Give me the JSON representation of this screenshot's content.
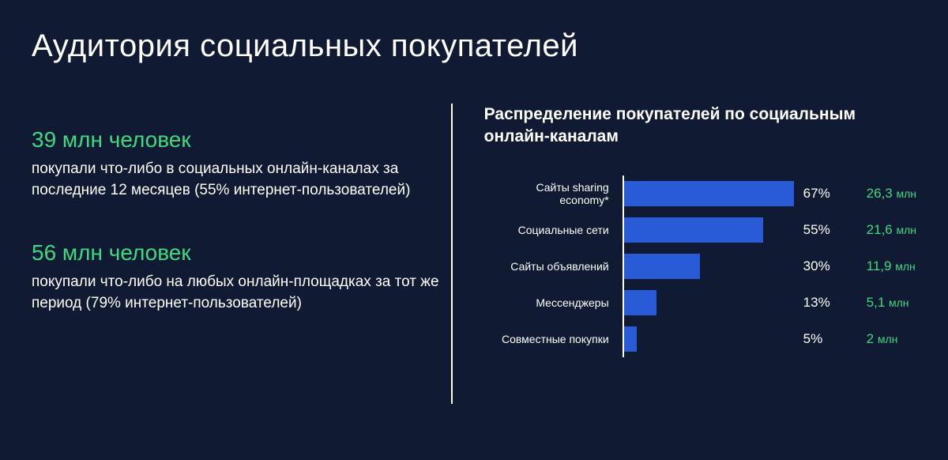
{
  "title": "Аудитория социальных покупателей",
  "colors": {
    "background": "#101a33",
    "accent_green": "#3fd97f",
    "bar": "#2a5bd7",
    "text": "#ffffff"
  },
  "left": {
    "stat1": {
      "headline": "39 млн человек",
      "desc": "покупали что-либо в социальных онлайн-каналах за последние 12 месяцев (55% интернет-пользователей)"
    },
    "stat2": {
      "headline": "56 млн человек",
      "desc": "покупали что-либо на любых онлайн-площадках за тот же период (79% интернет-пользователей)"
    }
  },
  "chart": {
    "title": "Распределение покупателей по социальным онлайн-каналам",
    "type": "bar-horizontal",
    "max_pct": 100,
    "bar_color": "#2a5bd7",
    "rows": [
      {
        "label": "Сайты sharing economy*",
        "pct": 67,
        "pct_label": "67%",
        "count_num": "26,3",
        "count_unit": "млн"
      },
      {
        "label": "Социальные сети",
        "pct": 55,
        "pct_label": "55%",
        "count_num": "21,6",
        "count_unit": "млн"
      },
      {
        "label": "Сайты объявлений",
        "pct": 30,
        "pct_label": "30%",
        "count_num": "11,9",
        "count_unit": "млн"
      },
      {
        "label": "Мессенджеры",
        "pct": 13,
        "pct_label": "13%",
        "count_num": "5,1",
        "count_unit": "млн"
      },
      {
        "label": "Совместные покупки",
        "pct": 5,
        "pct_label": "5%",
        "count_num": "2",
        "count_unit": "млн"
      }
    ]
  }
}
